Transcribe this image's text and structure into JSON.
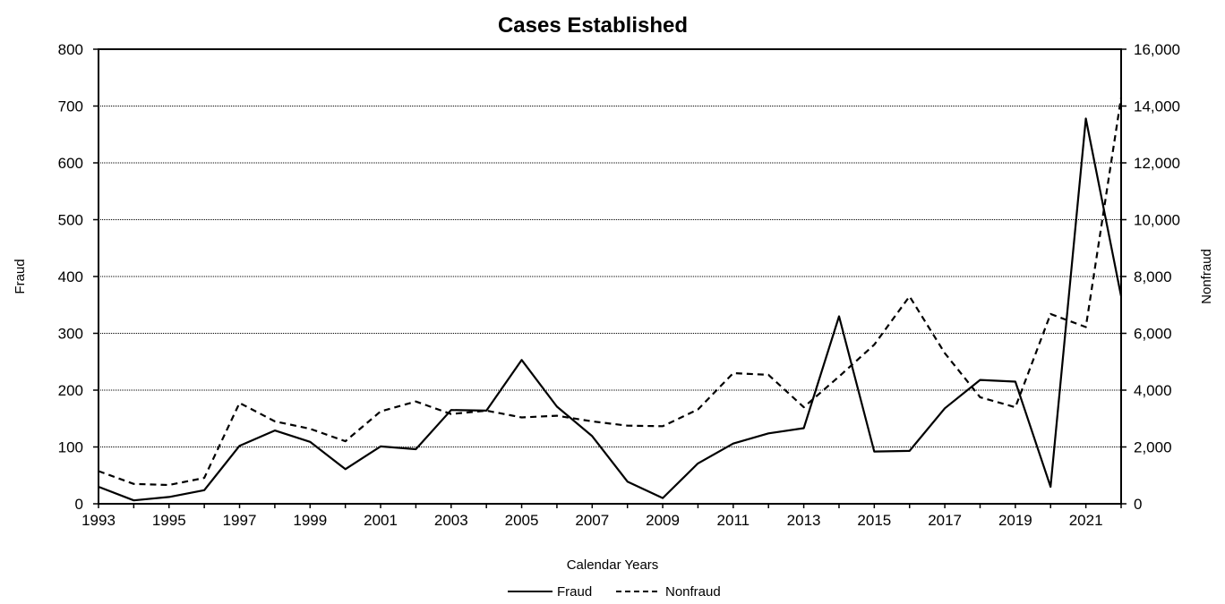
{
  "chart_data": {
    "type": "line",
    "title": "Cases Established",
    "xlabel": "Calendar Years",
    "ylabel_left": "Fraud",
    "ylabel_right": "Nonfraud",
    "xlim": [
      1993,
      2022
    ],
    "ylim_left": [
      0,
      800
    ],
    "ylim_right": [
      0,
      16000
    ],
    "x_tick_labels": [
      "1993",
      "1995",
      "1997",
      "1999",
      "2001",
      "2003",
      "2005",
      "2007",
      "2009",
      "2011",
      "2013",
      "2015",
      "2017",
      "2019",
      "2021"
    ],
    "y_left_tick_labels": [
      "0",
      "100",
      "200",
      "300",
      "400",
      "500",
      "600",
      "700",
      "800"
    ],
    "y_right_tick_labels": [
      "0",
      "2,000",
      "4,000",
      "6,000",
      "8,000",
      "10,000",
      "12,000",
      "14,000",
      "16,000"
    ],
    "grid": "horizontal",
    "legend_position": "bottom",
    "x": [
      1993,
      1994,
      1995,
      1996,
      1997,
      1998,
      1999,
      2000,
      2001,
      2002,
      2003,
      2004,
      2005,
      2006,
      2007,
      2008,
      2009,
      2010,
      2011,
      2012,
      2013,
      2014,
      2015,
      2016,
      2017,
      2018,
      2019,
      2020,
      2021,
      2022
    ],
    "series": [
      {
        "name": "Fraud",
        "axis": "left",
        "style": "solid",
        "color": "#000000",
        "values": [
          30,
          6,
          12,
          24,
          102,
          129,
          109,
          61,
          101,
          96,
          165,
          164,
          253,
          171,
          119,
          39,
          10,
          71,
          106,
          124,
          133,
          330,
          92,
          93,
          168,
          218,
          215,
          30,
          678,
          365
        ]
      },
      {
        "name": "Nonfraud",
        "axis": "right",
        "style": "dashed",
        "color": "#000000",
        "values": [
          1150,
          700,
          660,
          910,
          3550,
          2900,
          2640,
          2200,
          3250,
          3600,
          3160,
          3280,
          3040,
          3100,
          2900,
          2750,
          2730,
          3320,
          4600,
          4540,
          3400,
          4480,
          5600,
          7300,
          5300,
          3750,
          3400,
          6680,
          6220,
          14300
        ]
      }
    ]
  },
  "colors": {
    "axis": "#000000",
    "grid": "#000000",
    "background": "#ffffff"
  }
}
